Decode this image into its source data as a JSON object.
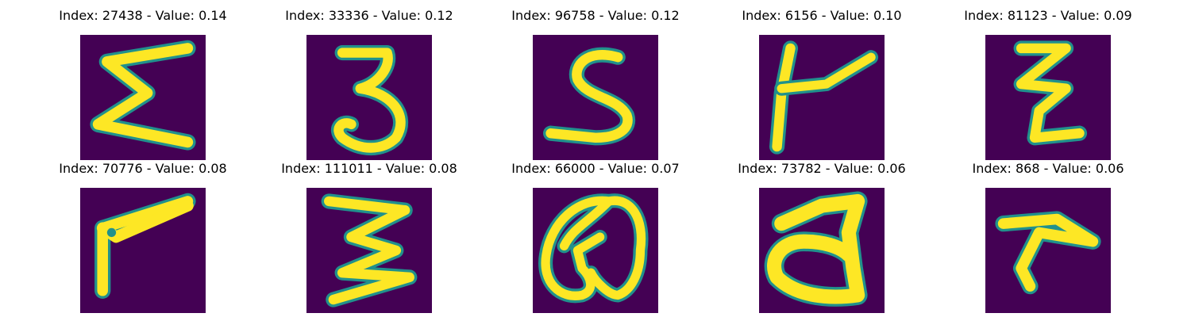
{
  "palette": {
    "background": "#440154",
    "ink": "#fde725",
    "edge": "#21918c"
  },
  "samples": [
    {
      "index": "27438",
      "value": "0.14",
      "title": "Index: 27438 - Value: 0.14",
      "glyph": "sigma-like"
    },
    {
      "index": "33336",
      "value": "0.12",
      "title": "Index: 33336 - Value: 0.12",
      "glyph": "three"
    },
    {
      "index": "96758",
      "value": "0.12",
      "title": "Index: 96758 - Value: 0.12",
      "glyph": "s"
    },
    {
      "index": "6156",
      "value": "0.10",
      "title": "Index: 6156 - Value: 0.10",
      "glyph": "t-like"
    },
    {
      "index": "81123",
      "value": "0.09",
      "title": "Index: 81123 - Value: 0.09",
      "glyph": "z-like"
    },
    {
      "index": "70776",
      "value": "0.08",
      "title": "Index: 70776 - Value: 0.08",
      "glyph": "p-like"
    },
    {
      "index": "111011",
      "value": "0.08",
      "title": "Index: 111011 - Value: 0.08",
      "glyph": "three"
    },
    {
      "index": "66000",
      "value": "0.07",
      "title": "Index: 66000 - Value: 0.07",
      "glyph": "q"
    },
    {
      "index": "73782",
      "value": "0.06",
      "title": "Index: 73782 - Value: 0.06",
      "glyph": "d"
    },
    {
      "index": "868",
      "value": "0.06",
      "title": "Index: 868 - Value: 0.06",
      "glyph": "r-like"
    }
  ]
}
